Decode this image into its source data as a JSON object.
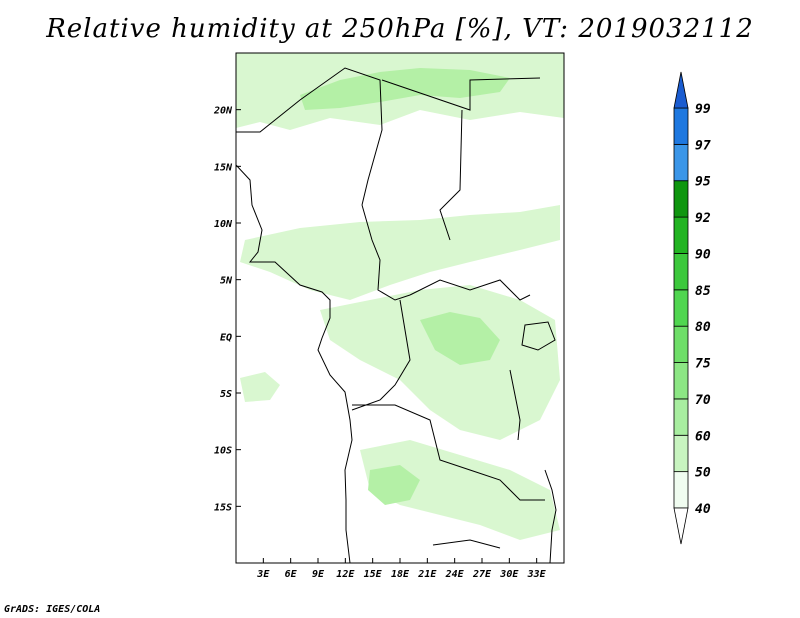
{
  "title": "Relative humidity at 250hPa [%], VT: 2019032112",
  "credit": "GrADS: IGES/COLA",
  "map": {
    "lon_range": [
      0,
      36
    ],
    "lat_range": [
      -20,
      25
    ],
    "x_ticks": [
      "3E",
      "6E",
      "9E",
      "12E",
      "15E",
      "18E",
      "21E",
      "24E",
      "27E",
      "30E",
      "33E"
    ],
    "x_tick_values": [
      3,
      6,
      9,
      12,
      15,
      18,
      21,
      24,
      27,
      30,
      33
    ],
    "y_ticks": [
      "20N",
      "15N",
      "10N",
      "5N",
      "EQ",
      "5S",
      "10S",
      "15S"
    ],
    "y_tick_values": [
      20,
      15,
      10,
      5,
      0,
      -5,
      -10,
      -15
    ],
    "fill_color_light": "#d9f7d0",
    "fill_color_mid": "#b4f0a6"
  },
  "colorbar": {
    "levels": [
      "40",
      "50",
      "60",
      "70",
      "75",
      "80",
      "85",
      "90",
      "92",
      "95",
      "97",
      "99"
    ],
    "colors": [
      "#f0fcf0",
      "#c8f4c0",
      "#a8eea0",
      "#8ce684",
      "#6ede68",
      "#50d650",
      "#3cc83c",
      "#22b422",
      "#0f960f",
      "#3b96e8",
      "#1e78e0",
      "#1a5cd0"
    ],
    "top_arrow_color": "#1a5cd0",
    "bottom_arrow_color": "#ffffff"
  }
}
